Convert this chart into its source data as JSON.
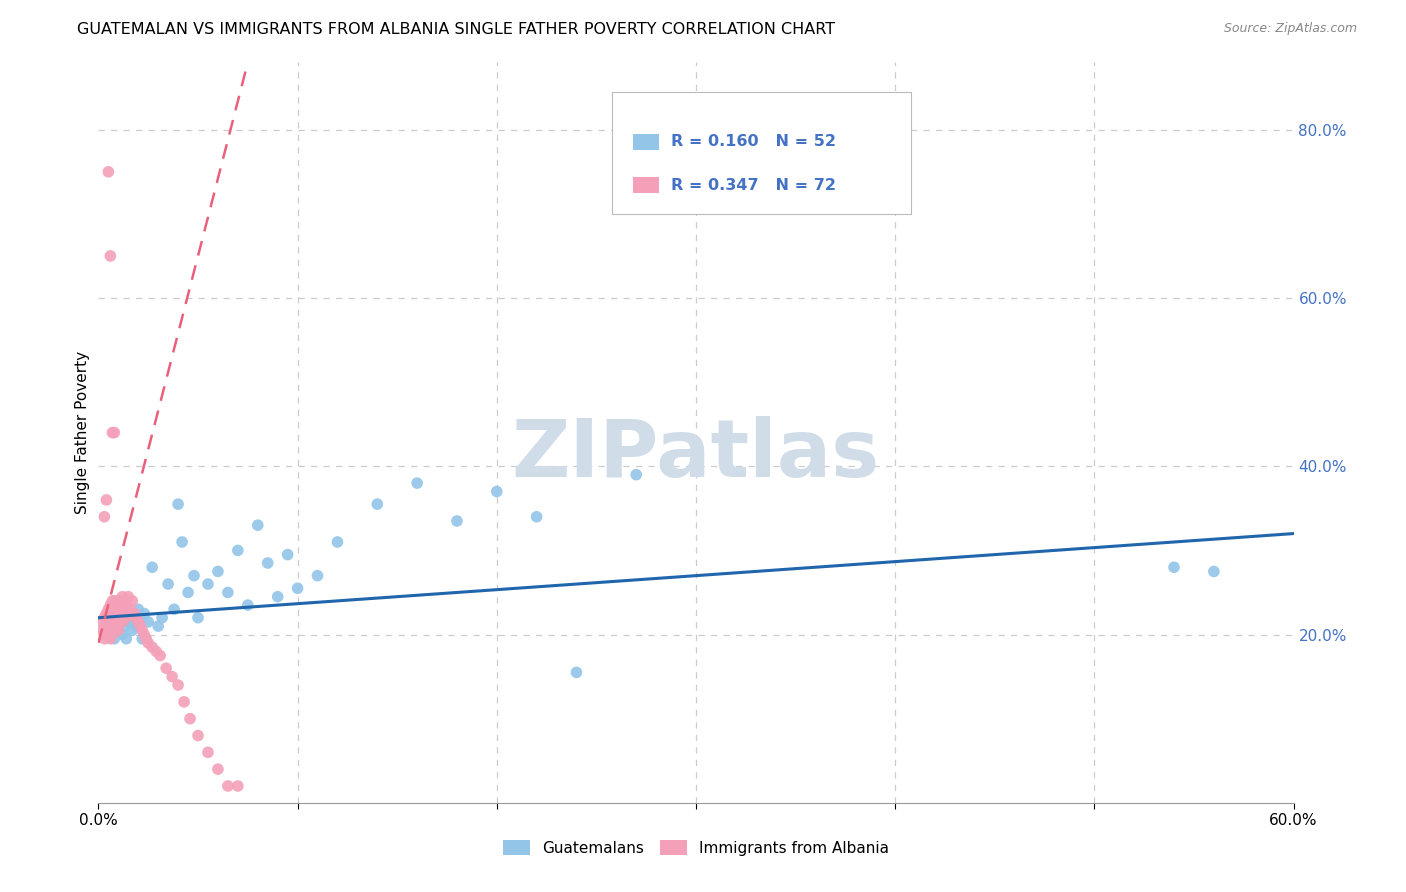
{
  "title": "GUATEMALAN VS IMMIGRANTS FROM ALBANIA SINGLE FATHER POVERTY CORRELATION CHART",
  "source": "Source: ZipAtlas.com",
  "ylabel": "Single Father Poverty",
  "xlim": [
    0,
    0.6
  ],
  "ylim": [
    0,
    0.88
  ],
  "blue_color": "#92C5E8",
  "pink_color": "#F4A0B8",
  "blue_line_color": "#2166AC",
  "pink_line_color": "#E8607A",
  "watermark_color": "#D0DDE8",
  "grid_color": "#CCCCCC",
  "right_tick_color": "#4472C4",
  "blue_scatter_x": [
    0.005,
    0.007,
    0.008,
    0.009,
    0.01,
    0.01,
    0.011,
    0.012,
    0.012,
    0.013,
    0.014,
    0.015,
    0.016,
    0.017,
    0.018,
    0.019,
    0.02,
    0.021,
    0.022,
    0.023,
    0.025,
    0.027,
    0.03,
    0.032,
    0.035,
    0.038,
    0.04,
    0.042,
    0.045,
    0.048,
    0.05,
    0.055,
    0.06,
    0.065,
    0.07,
    0.075,
    0.08,
    0.085,
    0.09,
    0.095,
    0.1,
    0.11,
    0.12,
    0.14,
    0.16,
    0.18,
    0.2,
    0.22,
    0.24,
    0.27,
    0.54,
    0.56
  ],
  "blue_scatter_y": [
    0.215,
    0.21,
    0.195,
    0.22,
    0.205,
    0.225,
    0.215,
    0.2,
    0.23,
    0.21,
    0.195,
    0.22,
    0.215,
    0.205,
    0.225,
    0.21,
    0.23,
    0.215,
    0.195,
    0.225,
    0.215,
    0.28,
    0.21,
    0.22,
    0.26,
    0.23,
    0.355,
    0.31,
    0.25,
    0.27,
    0.22,
    0.26,
    0.275,
    0.25,
    0.3,
    0.235,
    0.33,
    0.285,
    0.245,
    0.295,
    0.255,
    0.27,
    0.31,
    0.355,
    0.38,
    0.335,
    0.37,
    0.34,
    0.155,
    0.39,
    0.28,
    0.275
  ],
  "pink_scatter_x": [
    0.002,
    0.002,
    0.003,
    0.003,
    0.003,
    0.004,
    0.004,
    0.004,
    0.004,
    0.005,
    0.005,
    0.005,
    0.005,
    0.006,
    0.006,
    0.006,
    0.006,
    0.006,
    0.007,
    0.007,
    0.007,
    0.007,
    0.008,
    0.008,
    0.008,
    0.009,
    0.009,
    0.009,
    0.01,
    0.01,
    0.01,
    0.01,
    0.011,
    0.011,
    0.012,
    0.012,
    0.012,
    0.013,
    0.013,
    0.014,
    0.014,
    0.015,
    0.015,
    0.016,
    0.017,
    0.018,
    0.019,
    0.02,
    0.021,
    0.022,
    0.023,
    0.024,
    0.025,
    0.027,
    0.029,
    0.031,
    0.034,
    0.037,
    0.04,
    0.043,
    0.046,
    0.05,
    0.055,
    0.06,
    0.065,
    0.07,
    0.005,
    0.006,
    0.007,
    0.008,
    0.004,
    0.003
  ],
  "pink_scatter_y": [
    0.205,
    0.215,
    0.2,
    0.22,
    0.195,
    0.21,
    0.225,
    0.205,
    0.215,
    0.22,
    0.2,
    0.215,
    0.23,
    0.205,
    0.215,
    0.225,
    0.195,
    0.235,
    0.21,
    0.22,
    0.24,
    0.2,
    0.215,
    0.225,
    0.24,
    0.21,
    0.235,
    0.22,
    0.215,
    0.225,
    0.24,
    0.205,
    0.22,
    0.235,
    0.215,
    0.23,
    0.245,
    0.225,
    0.24,
    0.22,
    0.235,
    0.225,
    0.245,
    0.23,
    0.24,
    0.225,
    0.22,
    0.215,
    0.21,
    0.205,
    0.2,
    0.195,
    0.19,
    0.185,
    0.18,
    0.175,
    0.16,
    0.15,
    0.14,
    0.12,
    0.1,
    0.08,
    0.06,
    0.04,
    0.02,
    0.02,
    0.75,
    0.65,
    0.44,
    0.44,
    0.36,
    0.34
  ],
  "blue_trend_x": [
    0.0,
    0.6
  ],
  "blue_trend_y": [
    0.22,
    0.32
  ],
  "pink_trend_x": [
    0.0,
    0.075
  ],
  "pink_trend_y": [
    0.19,
    0.88
  ]
}
